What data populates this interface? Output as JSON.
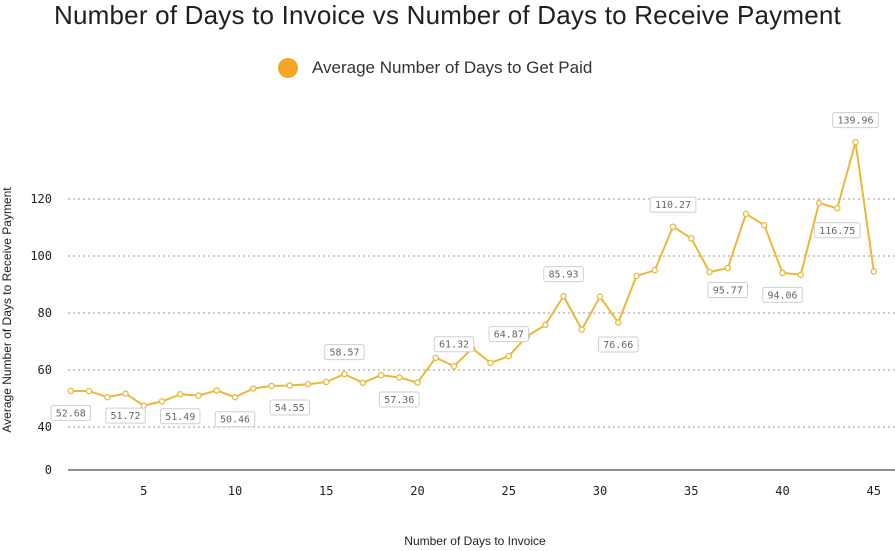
{
  "chart_data": {
    "type": "line",
    "title": "Number of Days to Invoice vs Number of Days to Receive Payment",
    "xlabel": "Number of Days to Invoice",
    "ylabel": "Average Number of Days to Receive Payment",
    "legend": {
      "position": "top-center",
      "entries": [
        "Average Number of Days to Get Paid"
      ]
    },
    "series": [
      {
        "name": "Average Number of Days to Get Paid",
        "color": "#e8b93a",
        "x": [
          1,
          2,
          3,
          4,
          5,
          6,
          7,
          8,
          9,
          10,
          11,
          12,
          13,
          14,
          15,
          16,
          17,
          18,
          19,
          20,
          21,
          22,
          23,
          24,
          25,
          26,
          27,
          28,
          29,
          30,
          31,
          32,
          33,
          34,
          35,
          36,
          37,
          38,
          39,
          40,
          41,
          42,
          43,
          44,
          45
        ],
        "y": [
          52.68,
          52.6,
          50.5,
          51.72,
          47.5,
          49.0,
          51.49,
          51.0,
          52.8,
          50.46,
          53.5,
          54.4,
          54.55,
          55.0,
          55.8,
          58.57,
          55.5,
          58.2,
          57.36,
          55.6,
          64.3,
          61.32,
          67.6,
          62.5,
          64.87,
          71.8,
          75.8,
          85.93,
          74.2,
          85.7,
          76.66,
          93.0,
          95.0,
          110.27,
          106.2,
          94.4,
          95.77,
          114.8,
          110.8,
          94.06,
          93.4,
          118.6,
          116.75,
          139.96,
          94.6
        ]
      }
    ],
    "data_labels": [
      {
        "x": 1,
        "text": "52.68"
      },
      {
        "x": 4,
        "text": "51.72"
      },
      {
        "x": 7,
        "text": "51.49"
      },
      {
        "x": 10,
        "text": "50.46"
      },
      {
        "x": 13,
        "text": "54.55"
      },
      {
        "x": 16,
        "text": "58.57"
      },
      {
        "x": 19,
        "text": "57.36"
      },
      {
        "x": 22,
        "text": "61.32"
      },
      {
        "x": 25,
        "text": "64.87"
      },
      {
        "x": 28,
        "text": "85.93"
      },
      {
        "x": 31,
        "text": "76.66"
      },
      {
        "x": 34,
        "text": "110.27"
      },
      {
        "x": 37,
        "text": "95.77"
      },
      {
        "x": 40,
        "text": "94.06"
      },
      {
        "x": 43,
        "text": "116.75"
      },
      {
        "x": 44,
        "text": "139.96"
      }
    ],
    "xticks": [
      5,
      10,
      15,
      20,
      25,
      30,
      35,
      40,
      45
    ],
    "yticks": [
      0,
      40,
      60,
      80,
      100,
      120
    ],
    "xlim": [
      1,
      45
    ],
    "grid": true
  }
}
